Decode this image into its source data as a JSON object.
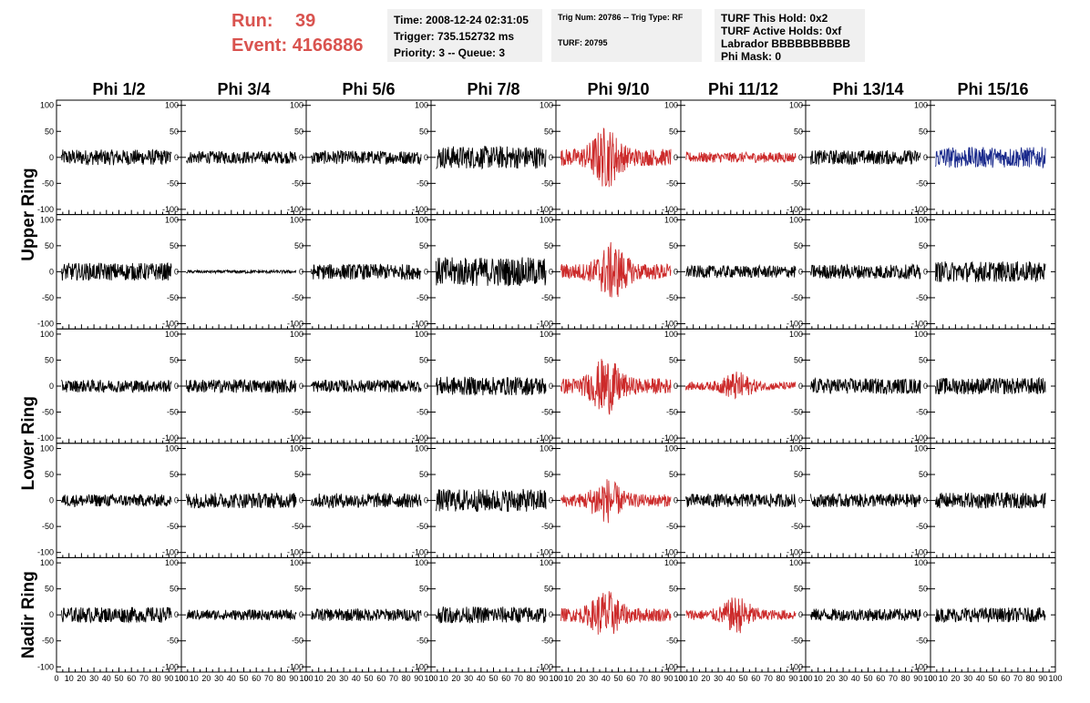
{
  "header": {
    "run_label": "Run:",
    "run_value": "39",
    "event_label": "Event:",
    "event_value": "4166886",
    "info1": [
      "Time: 2008-12-24 02:31:05",
      "Trigger: 735.152732 ms",
      "Priority: 3 -- Queue: 3"
    ],
    "info2": [
      "Trig Num: 20786 -- Trig Type: RF",
      "TURF: 20795"
    ],
    "info3": [
      "TURF This Hold: 0x2",
      "TURF Active Holds: 0xf",
      "Labrador BBBBBBBBBB",
      "Phi Mask: 0"
    ]
  },
  "colors": {
    "default": "#000000",
    "highlight": "#cc2a2a",
    "alt": "#1a2a8c",
    "run_text": "#d9534f"
  },
  "chart_data": {
    "type": "line",
    "columns": [
      "Phi 1/2",
      "Phi 3/4",
      "Phi 5/6",
      "Phi 7/8",
      "Phi 9/10",
      "Phi 11/12",
      "Phi 13/14",
      "Phi 15/16"
    ],
    "rows": [
      "Upper Ring",
      "Upper Ring",
      "Lower Ring",
      "Lower Ring",
      "Nadir Ring"
    ],
    "row_labels": [
      "Upper Ring",
      "Lower Ring",
      "Nadir Ring"
    ],
    "xlim": [
      0,
      100
    ],
    "ylim": [
      -110,
      110
    ],
    "x_ticks": [
      "0",
      "10",
      "20",
      "30",
      "40",
      "50",
      "60",
      "70",
      "80",
      "90",
      "100"
    ],
    "y_ticks": [
      "100",
      "50",
      "0",
      "-50",
      "-100"
    ],
    "panel_colors": [
      [
        "default",
        "default",
        "default",
        "default",
        "highlight",
        "highlight",
        "default",
        "alt"
      ],
      [
        "default",
        "default",
        "default",
        "default",
        "highlight",
        "default",
        "default",
        "default"
      ],
      [
        "default",
        "default",
        "default",
        "default",
        "highlight",
        "highlight",
        "default",
        "default"
      ],
      [
        "default",
        "default",
        "default",
        "default",
        "highlight",
        "default",
        "default",
        "default"
      ],
      [
        "default",
        "default",
        "default",
        "default",
        "highlight",
        "highlight",
        "default",
        "default"
      ]
    ],
    "panel_amplitude": [
      [
        15,
        12,
        13,
        22,
        30,
        10,
        14,
        20
      ],
      [
        17,
        3,
        15,
        28,
        28,
        12,
        14,
        20
      ],
      [
        12,
        13,
        12,
        18,
        28,
        14,
        15,
        16
      ],
      [
        12,
        15,
        14,
        22,
        22,
        13,
        13,
        15
      ],
      [
        15,
        10,
        12,
        16,
        24,
        18,
        12,
        14
      ]
    ],
    "panel_pulse_center": [
      [
        0,
        0,
        0,
        0,
        40,
        0,
        0,
        0
      ],
      [
        0,
        0,
        0,
        0,
        45,
        0,
        0,
        0
      ],
      [
        0,
        0,
        0,
        0,
        40,
        45,
        0,
        0
      ],
      [
        0,
        0,
        0,
        0,
        40,
        0,
        0,
        0
      ],
      [
        0,
        0,
        0,
        0,
        40,
        45,
        0,
        0
      ]
    ]
  }
}
